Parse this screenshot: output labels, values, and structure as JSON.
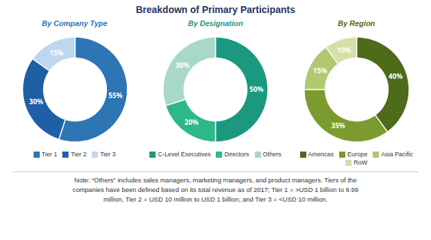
{
  "title": "Breakdown of Primary Participants",
  "annotations": [
    "Note: “Others” includes sales managers, marketing managers, and product managers. Tiers of the\ncompanies have been defined based on its total revenue as of 2017; Tier 1 = >USD 1 billion to 9.99\nmillion, Tier 2 = USD 10 million to USD 1 billion, and Tier 3 = <USD 10 million."
  ],
  "chart_data": [
    {
      "type": "pie",
      "title": "By Company Type",
      "categories": [
        "Tier 1",
        "Tier 2",
        "Tier 3"
      ],
      "values": [
        55,
        30,
        15
      ],
      "value_labels": [
        "55%",
        "30%",
        "15%"
      ],
      "colors": [
        "#2E75B6",
        "#1F5FA6",
        "#BDD7EE"
      ],
      "data_labels": true
    },
    {
      "type": "pie",
      "title": "By Designation",
      "categories": [
        "C-Level Executives",
        "Directors",
        "Others"
      ],
      "values": [
        50,
        20,
        30
      ],
      "value_labels": [
        "50%",
        "20%",
        "30%"
      ],
      "colors": [
        "#1A9880",
        "#2DB88A",
        "#A8D8C8"
      ],
      "data_labels": true
    },
    {
      "type": "pie",
      "title": "By Region",
      "categories": [
        "Americas",
        "Europe",
        "Asia Pacific",
        "RoW"
      ],
      "values": [
        40,
        35,
        15,
        10
      ],
      "value_labels": [
        "40%",
        "35%",
        "15%",
        "10%"
      ],
      "colors": [
        "#4E6B1A",
        "#7B9B2E",
        "#B0C870",
        "#D4E0A5"
      ],
      "data_labels": true
    }
  ]
}
